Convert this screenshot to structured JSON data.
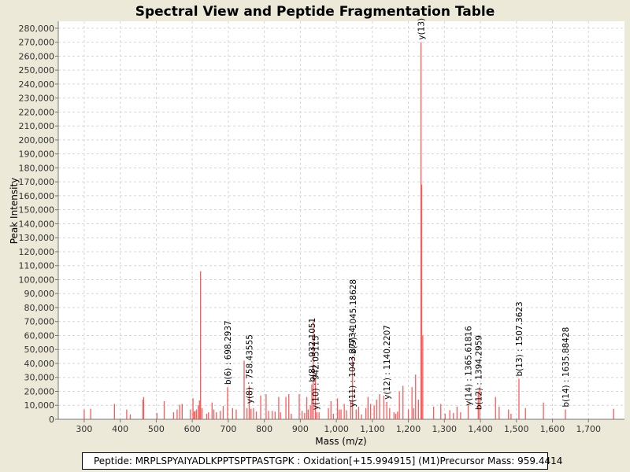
{
  "chart_data": {
    "type": "bar",
    "title": "Spectral View and Peptide Fragmentation Table",
    "xlabel": "Mass (m/z)",
    "ylabel": "Peak Intensity",
    "xlim": [
      228,
      1800
    ],
    "ylim": [
      0,
      285000
    ],
    "x_ticks": [
      300,
      400,
      500,
      600,
      700,
      800,
      900,
      1000,
      1100,
      1200,
      1300,
      1400,
      1500,
      1600,
      1700
    ],
    "x_tick_labels": [
      "300",
      "400",
      "500",
      "600",
      "700",
      "800",
      "900",
      "1,000",
      "1,100",
      "1,200",
      "1,300",
      "1,400",
      "1,500",
      "1,600",
      "1,700"
    ],
    "y_ticks": [
      0,
      10000,
      20000,
      30000,
      40000,
      50000,
      60000,
      70000,
      80000,
      90000,
      100000,
      110000,
      120000,
      130000,
      140000,
      150000,
      160000,
      170000,
      180000,
      190000,
      200000,
      210000,
      220000,
      230000,
      240000,
      250000,
      260000,
      270000,
      280000
    ],
    "y_tick_labels": [
      "0",
      "10,000",
      "20,000",
      "30,000",
      "40,000",
      "50,000",
      "60,000",
      "70,000",
      "80,000",
      "90,000",
      "100,000",
      "110,000",
      "120,000",
      "130,000",
      "140,000",
      "150,000",
      "160,000",
      "170,000",
      "180,000",
      "190,000",
      "200,000",
      "210,000",
      "220,000",
      "230,000",
      "240,000",
      "250,000",
      "260,000",
      "270,000",
      "280,000"
    ],
    "grid": true,
    "bar_color": "#ff5a5a",
    "peaks": [
      [
        300,
        7000
      ],
      [
        318,
        7500
      ],
      [
        384,
        11000
      ],
      [
        418,
        7000
      ],
      [
        428,
        3500
      ],
      [
        463,
        14000
      ],
      [
        465,
        16000
      ],
      [
        502,
        4500
      ],
      [
        522,
        13000
      ],
      [
        548,
        5000
      ],
      [
        558,
        7000
      ],
      [
        565,
        10500
      ],
      [
        572,
        11000
      ],
      [
        595,
        7000
      ],
      [
        602,
        15000
      ],
      [
        605,
        5500
      ],
      [
        608,
        6000
      ],
      [
        612,
        7000
      ],
      [
        617,
        10000
      ],
      [
        620,
        13500
      ],
      [
        623,
        106000
      ],
      [
        627,
        8000
      ],
      [
        640,
        4000
      ],
      [
        645,
        5000
      ],
      [
        655,
        12000
      ],
      [
        660,
        7000
      ],
      [
        667,
        5000
      ],
      [
        678,
        6000
      ],
      [
        686,
        9500
      ],
      [
        698,
        23000
      ],
      [
        712,
        8000
      ],
      [
        722,
        7000
      ],
      [
        744,
        42000
      ],
      [
        752,
        8000
      ],
      [
        758,
        24000
      ],
      [
        763,
        7500
      ],
      [
        770,
        8000
      ],
      [
        778,
        5500
      ],
      [
        790,
        17000
      ],
      [
        805,
        18000
      ],
      [
        812,
        6000
      ],
      [
        822,
        6000
      ],
      [
        830,
        5500
      ],
      [
        840,
        16000
      ],
      [
        845,
        5000
      ],
      [
        860,
        16000
      ],
      [
        868,
        18000
      ],
      [
        875,
        4000
      ],
      [
        897,
        18000
      ],
      [
        905,
        6000
      ],
      [
        912,
        4500
      ],
      [
        918,
        16000
      ],
      [
        922,
        7000
      ],
      [
        928,
        10000
      ],
      [
        932,
        25000
      ],
      [
        936,
        71000
      ],
      [
        942,
        29000
      ],
      [
        946,
        5000
      ],
      [
        952,
        5000
      ],
      [
        978,
        8000
      ],
      [
        985,
        13000
      ],
      [
        992,
        4000
      ],
      [
        1003,
        15000
      ],
      [
        1008,
        7000
      ],
      [
        1013,
        7000
      ],
      [
        1022,
        11000
      ],
      [
        1028,
        6500
      ],
      [
        1040,
        13000
      ],
      [
        1045,
        45000
      ],
      [
        1055,
        7000
      ],
      [
        1062,
        9000
      ],
      [
        1070,
        3500
      ],
      [
        1082,
        8000
      ],
      [
        1088,
        16000
      ],
      [
        1095,
        11000
      ],
      [
        1105,
        10000
      ],
      [
        1112,
        14000
      ],
      [
        1120,
        18000
      ],
      [
        1132,
        17000
      ],
      [
        1140,
        12500
      ],
      [
        1148,
        8000
      ],
      [
        1160,
        5000
      ],
      [
        1165,
        4000
      ],
      [
        1170,
        5500
      ],
      [
        1175,
        20000
      ],
      [
        1185,
        24000
      ],
      [
        1200,
        7000
      ],
      [
        1210,
        23000
      ],
      [
        1215,
        8000
      ],
      [
        1220,
        32000
      ],
      [
        1228,
        14000
      ],
      [
        1235,
        270000
      ],
      [
        1237,
        168000
      ],
      [
        1240,
        60000
      ],
      [
        1270,
        9000
      ],
      [
        1290,
        11000
      ],
      [
        1302,
        4000
      ],
      [
        1315,
        6500
      ],
      [
        1325,
        4500
      ],
      [
        1335,
        9000
      ],
      [
        1345,
        5000
      ],
      [
        1366,
        11000
      ],
      [
        1394,
        20000
      ],
      [
        1398,
        23000
      ],
      [
        1442,
        16000
      ],
      [
        1452,
        9000
      ],
      [
        1478,
        7000
      ],
      [
        1485,
        4000
      ],
      [
        1507,
        29000
      ],
      [
        1525,
        8000
      ],
      [
        1575,
        12000
      ],
      [
        1636,
        7000
      ],
      [
        1770,
        7500
      ]
    ],
    "annotations": [
      {
        "x": 698.2937,
        "y": 23000,
        "label": "b(6) : 698.2937"
      },
      {
        "x": 758.43555,
        "y": 9500,
        "label": "y(8) : 758.43555"
      },
      {
        "x": 932.1051,
        "y": 25000,
        "label": "b(8) : 932.1051"
      },
      {
        "x": 942.05115,
        "y": 5000,
        "label": "y(10) : 942.05115"
      },
      {
        "x": 1043.27734,
        "y": 7000,
        "label": "y(11) : 1043.27734"
      },
      {
        "x": 1045.18628,
        "y": 45000,
        "label": "b(9) : 1045.18628"
      },
      {
        "x": 1140.2207,
        "y": 12500,
        "label": "y(12) : 1140.2207"
      },
      {
        "x": 1235,
        "y": 270000,
        "label": "y(13)"
      },
      {
        "x": 1365.61816,
        "y": 8000,
        "label": "y(14) : 1365.61816"
      },
      {
        "x": 1394.2959,
        "y": 5000,
        "label": "b(12) : 1394.2959"
      },
      {
        "x": 1507.3623,
        "y": 29000,
        "label": "b(13) : 1507.3623"
      },
      {
        "x": 1635.88428,
        "y": 7000,
        "label": "b(14) : 1635.88428"
      }
    ]
  },
  "footer": {
    "peptide": "Peptide: MRPLSPYAIYADLKPPTSPTPASTGPK : Oxidation[+15.994915] (M1)",
    "precursor": "Precursor Mass: 959.4414"
  }
}
